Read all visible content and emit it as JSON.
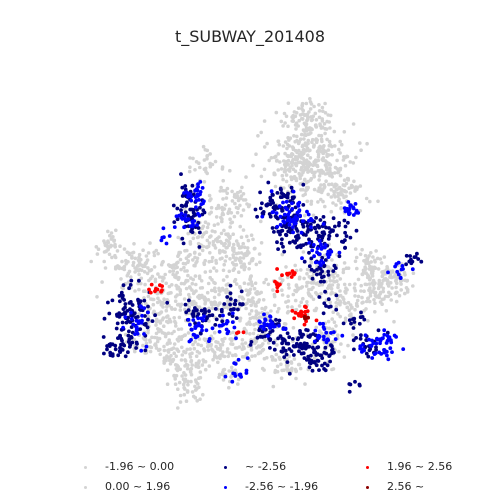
{
  "title": "t_SUBWAY_201408",
  "colors": {
    "neg_low": "#d3d3d3",
    "pos_low": "#d3d3d3",
    "neg_high": "#000080",
    "neg_mid": "#0000ff",
    "pos_mid": "#ff0000",
    "pos_high": "#8b0000"
  },
  "legend": [
    {
      "key": "neg_low",
      "label": "-1.96 ~ 0.00"
    },
    {
      "key": "neg_high",
      "label": "~ -2.56"
    },
    {
      "key": "pos_mid",
      "label": "1.96 ~ 2.56"
    },
    {
      "key": "pos_low",
      "label": "0.00 ~ 1.96"
    },
    {
      "key": "neg_mid",
      "label": "-2.56 ~ -1.96"
    },
    {
      "key": "pos_high",
      "label": "2.56 ~"
    }
  ]
}
